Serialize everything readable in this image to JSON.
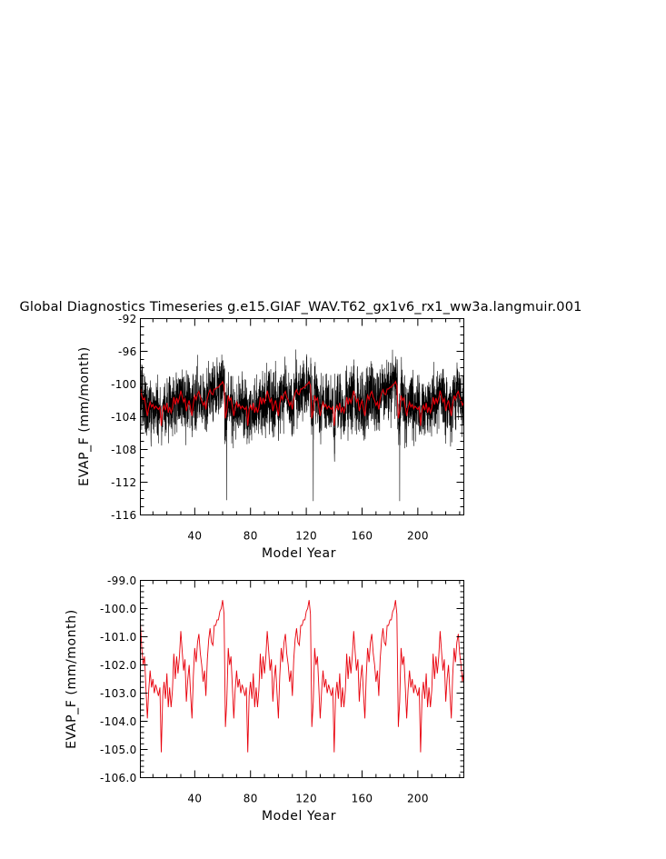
{
  "chart_data": [
    {
      "type": "line",
      "title": "Global Diagnostics Timeseries g.e15.GIAF_WAV.T62_gx1v6_rx1_ww3a.langmuir.001",
      "xlabel": "Model Year",
      "ylabel": "EVAP_F (mm/month)",
      "xlim": [
        1,
        233
      ],
      "ylim": [
        -116,
        -92
      ],
      "xticks": [
        "40",
        "80",
        "120",
        "160",
        "200"
      ],
      "yticks": [
        "-116",
        "-112",
        "-108",
        "-104",
        "-100",
        "-96",
        "-92"
      ],
      "grid": false,
      "series": [
        {
          "color": "#000000",
          "description_of_values": "monthly",
          "cycle_length_years": 62,
          "monthly_noise_amplitude": 2.2,
          "min_events": [
            {
              "x": 63,
              "y": -114.2
            },
            {
              "x": 125,
              "y": -114.3
            },
            {
              "x": 187,
              "y": -114.3
            }
          ]
        },
        {
          "color": "#e8000b",
          "description_of_values": "annual mean"
        }
      ]
    },
    {
      "type": "line",
      "xlabel": "Model Year",
      "ylabel": "EVAP_F (mm/month)",
      "xlim": [
        1,
        233
      ],
      "ylim": [
        -106,
        -99
      ],
      "xticks": [
        "40",
        "80",
        "120",
        "160",
        "200"
      ],
      "yticks": [
        "-106.0",
        "-105.0",
        "-104.0",
        "-103.0",
        "-102.0",
        "-101.0",
        "-100.0",
        "-99.0"
      ],
      "grid": false,
      "series": [
        {
          "color": "#e8000b",
          "x_start": 1,
          "cycle_values": [
            -100.5,
            -101.4,
            -102.0,
            -101.7,
            -102.8,
            -103.9,
            -102.9,
            -102.2,
            -102.8,
            -102.5,
            -103.0,
            -102.7,
            -102.9,
            -103.1,
            -102.8,
            -105.1,
            -103.1,
            -102.6,
            -103.2,
            -102.3,
            -103.5,
            -102.8,
            -103.5,
            -102.9,
            -101.6,
            -102.5,
            -101.7,
            -102.3,
            -101.7,
            -100.8,
            -101.5,
            -102.2,
            -101.8,
            -103.3,
            -102.5,
            -102.0,
            -103.0,
            -103.9,
            -102.4,
            -101.4,
            -101.9,
            -101.2,
            -100.9,
            -101.6,
            -102.0,
            -102.6,
            -102.2,
            -103.1,
            -101.8,
            -101.1,
            -100.7,
            -101.2,
            -101.3,
            -100.6,
            -100.6,
            -100.4,
            -100.4,
            -100.1,
            -100.0,
            -99.7,
            -100.2,
            -104.2
          ]
        }
      ]
    }
  ]
}
